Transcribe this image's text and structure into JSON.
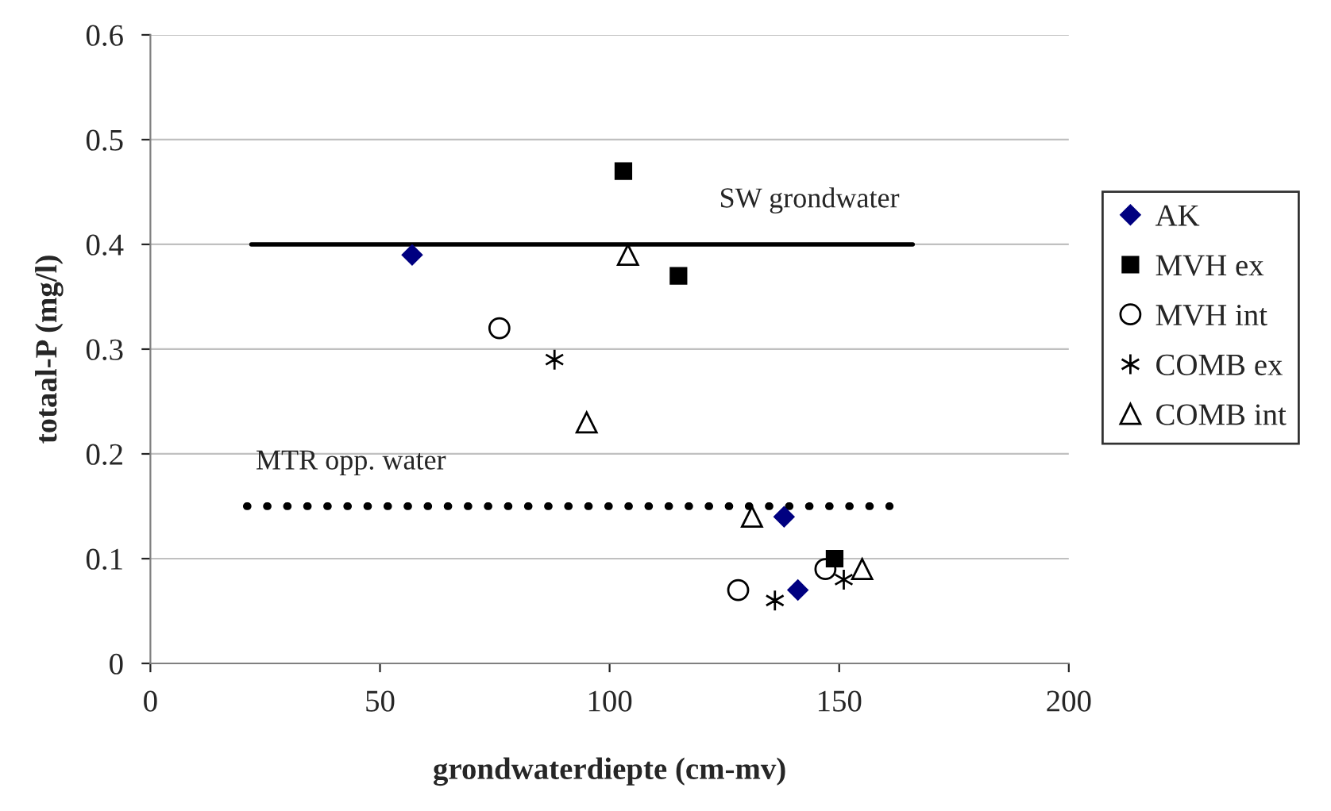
{
  "chart_data": {
    "type": "scatter",
    "xlabel": "grondwaterdiepte (cm-mv)",
    "ylabel": "totaal-P (mg/l)",
    "xlim": [
      0,
      200
    ],
    "ylim": [
      0,
      0.6
    ],
    "xticks": [
      0,
      50,
      100,
      150,
      200
    ],
    "yticks": [
      0,
      0.1,
      0.2,
      0.3,
      0.4,
      0.5,
      0.6
    ],
    "grid": "y",
    "legend": "right",
    "series": [
      {
        "name": "AK",
        "color": "#000080",
        "marker": "diamond",
        "x": [
          57,
          138,
          141
        ],
        "values": [
          0.39,
          0.14,
          0.07
        ]
      },
      {
        "name": "MVH ex",
        "color": "#000000",
        "marker": "square",
        "x": [
          103,
          115,
          149
        ],
        "values": [
          0.47,
          0.37,
          0.1
        ]
      },
      {
        "name": "MVH int",
        "color": "#000000",
        "marker": "circle",
        "x": [
          76,
          128,
          147
        ],
        "values": [
          0.32,
          0.07,
          0.09
        ]
      },
      {
        "name": "COMB ex",
        "color": "#000000",
        "marker": "cross",
        "x": [
          88,
          136,
          151
        ],
        "values": [
          0.29,
          0.06,
          0.08
        ]
      },
      {
        "name": "COMB int",
        "color": "#000000",
        "marker": "triangle",
        "x": [
          104,
          95,
          131,
          155
        ],
        "values": [
          0.39,
          0.23,
          0.14,
          0.09
        ]
      },
      {
        "name": "SW grondwater",
        "type": "line",
        "color": "#000000",
        "marker": "none",
        "line_style": "solid",
        "x": [
          22,
          166
        ],
        "values": [
          0.4,
          0.4
        ]
      },
      {
        "name": "MTR opp. water",
        "type": "line",
        "color": "#000000",
        "marker": "none",
        "line_style": "dotted",
        "x": [
          21,
          161
        ],
        "values": [
          0.15,
          0.15
        ]
      }
    ]
  }
}
